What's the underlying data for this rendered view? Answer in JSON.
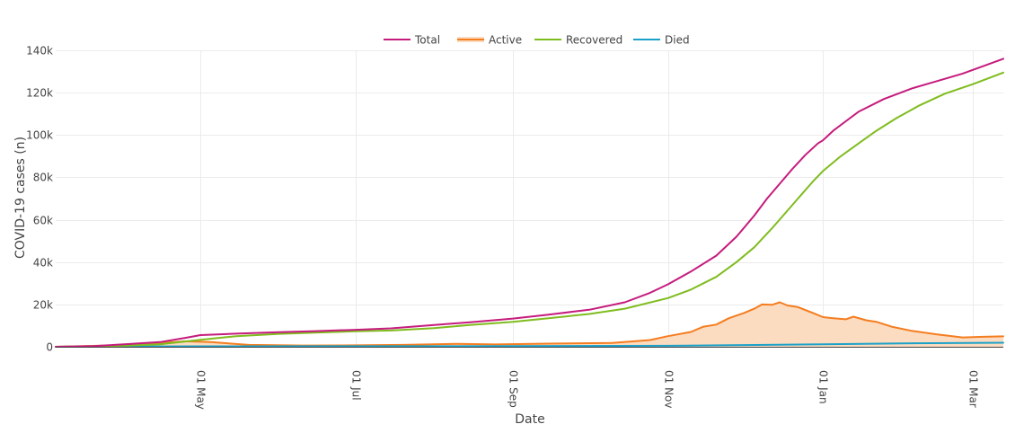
{
  "chart_data": {
    "type": "line",
    "xlabel": "Date",
    "ylabel": "COVID-19 cases (n)",
    "x_range": [
      "2020-03-05",
      "2021-03-13"
    ],
    "ylim": [
      0,
      140000
    ],
    "y_ticks": [
      0,
      20000,
      40000,
      60000,
      80000,
      100000,
      120000,
      140000
    ],
    "y_tick_labels": [
      "0",
      "20k",
      "40k",
      "60k",
      "80k",
      "100k",
      "120k",
      "140k"
    ],
    "x_ticks": [
      "2020-05-01",
      "2020-07-01",
      "2020-09-01",
      "2020-11-01",
      "2021-01-01",
      "2021-03-01"
    ],
    "x_tick_labels": [
      "01 May",
      "01 Jul",
      "01 Sep",
      "01 Nov",
      "01 Jan",
      "01 Mar"
    ],
    "grid": true,
    "legend_position": "top",
    "series": [
      {
        "name": "Total",
        "color": "#c51b7d",
        "fill": false,
        "points": [
          [
            "2020-03-05",
            0
          ],
          [
            "2020-03-20",
            300
          ],
          [
            "2020-04-01",
            1200
          ],
          [
            "2020-04-15",
            2200
          ],
          [
            "2020-04-25",
            4200
          ],
          [
            "2020-05-01",
            5500
          ],
          [
            "2020-05-15",
            6200
          ],
          [
            "2020-06-01",
            6900
          ],
          [
            "2020-06-15",
            7400
          ],
          [
            "2020-07-01",
            8000
          ],
          [
            "2020-07-15",
            8700
          ],
          [
            "2020-08-01",
            10300
          ],
          [
            "2020-08-15",
            11600
          ],
          [
            "2020-09-01",
            13300
          ],
          [
            "2020-09-15",
            15200
          ],
          [
            "2020-10-01",
            17500
          ],
          [
            "2020-10-15",
            21000
          ],
          [
            "2020-10-25",
            25500
          ],
          [
            "2020-11-01",
            29500
          ],
          [
            "2020-11-10",
            35500
          ],
          [
            "2020-11-20",
            43000
          ],
          [
            "2020-11-28",
            52000
          ],
          [
            "2020-12-05",
            62000
          ],
          [
            "2020-12-10",
            70000
          ],
          [
            "2020-12-15",
            77000
          ],
          [
            "2020-12-20",
            84000
          ],
          [
            "2020-12-25",
            90500
          ],
          [
            "2020-12-30",
            96000
          ],
          [
            "2021-01-01",
            97500
          ],
          [
            "2021-01-05",
            102000
          ],
          [
            "2021-01-10",
            106500
          ],
          [
            "2021-01-15",
            111000
          ],
          [
            "2021-01-25",
            117000
          ],
          [
            "2021-02-05",
            122000
          ],
          [
            "2021-02-15",
            125500
          ],
          [
            "2021-02-25",
            129000
          ],
          [
            "2021-03-05",
            132500
          ],
          [
            "2021-03-13",
            136000
          ]
        ]
      },
      {
        "name": "Active",
        "color": "#f47d20",
        "fill": true,
        "fill_color": "#fcdcc0",
        "points": [
          [
            "2020-03-05",
            0
          ],
          [
            "2020-04-01",
            800
          ],
          [
            "2020-04-15",
            1800
          ],
          [
            "2020-04-25",
            2600
          ],
          [
            "2020-05-05",
            2200
          ],
          [
            "2020-05-20",
            900
          ],
          [
            "2020-06-10",
            600
          ],
          [
            "2020-07-01",
            700
          ],
          [
            "2020-07-20",
            900
          ],
          [
            "2020-08-10",
            1400
          ],
          [
            "2020-08-25",
            1100
          ],
          [
            "2020-09-15",
            1500
          ],
          [
            "2020-10-10",
            1800
          ],
          [
            "2020-10-25",
            3200
          ],
          [
            "2020-11-01",
            5000
          ],
          [
            "2020-11-10",
            7000
          ],
          [
            "2020-11-15",
            9500
          ],
          [
            "2020-11-20",
            10500
          ],
          [
            "2020-11-25",
            13500
          ],
          [
            "2020-12-01",
            16000
          ],
          [
            "2020-12-05",
            18000
          ],
          [
            "2020-12-08",
            20000
          ],
          [
            "2020-12-12",
            19800
          ],
          [
            "2020-12-15",
            21000
          ],
          [
            "2020-12-18",
            19500
          ],
          [
            "2020-12-22",
            18800
          ],
          [
            "2020-12-28",
            16000
          ],
          [
            "2021-01-01",
            14000
          ],
          [
            "2021-01-05",
            13500
          ],
          [
            "2021-01-10",
            13000
          ],
          [
            "2021-01-13",
            14200
          ],
          [
            "2021-01-18",
            12500
          ],
          [
            "2021-01-22",
            11800
          ],
          [
            "2021-01-28",
            9500
          ],
          [
            "2021-02-05",
            7500
          ],
          [
            "2021-02-15",
            5800
          ],
          [
            "2021-02-25",
            4400
          ],
          [
            "2021-03-05",
            4700
          ],
          [
            "2021-03-13",
            4900
          ]
        ]
      },
      {
        "name": "Recovered",
        "color": "#7fbc1e",
        "fill": false,
        "points": [
          [
            "2020-03-05",
            0
          ],
          [
            "2020-04-01",
            500
          ],
          [
            "2020-04-15",
            1200
          ],
          [
            "2020-05-01",
            3300
          ],
          [
            "2020-05-15",
            5000
          ],
          [
            "2020-06-01",
            6100
          ],
          [
            "2020-06-15",
            6700
          ],
          [
            "2020-07-01",
            7300
          ],
          [
            "2020-07-15",
            7700
          ],
          [
            "2020-08-01",
            8800
          ],
          [
            "2020-08-15",
            10300
          ],
          [
            "2020-09-01",
            11800
          ],
          [
            "2020-09-15",
            13500
          ],
          [
            "2020-10-01",
            15500
          ],
          [
            "2020-10-15",
            18000
          ],
          [
            "2020-11-01",
            23000
          ],
          [
            "2020-11-10",
            27000
          ],
          [
            "2020-11-20",
            33000
          ],
          [
            "2020-11-28",
            40000
          ],
          [
            "2020-12-05",
            47000
          ],
          [
            "2020-12-12",
            56000
          ],
          [
            "2020-12-20",
            67000
          ],
          [
            "2020-12-28",
            78000
          ],
          [
            "2021-01-01",
            83000
          ],
          [
            "2021-01-08",
            90000
          ],
          [
            "2021-01-15",
            96000
          ],
          [
            "2021-01-22",
            102000
          ],
          [
            "2021-01-30",
            108000
          ],
          [
            "2021-02-08",
            114000
          ],
          [
            "2021-02-18",
            119500
          ],
          [
            "2021-03-01",
            124000
          ],
          [
            "2021-03-13",
            129500
          ]
        ]
      },
      {
        "name": "Died",
        "color": "#1ba1c9",
        "fill": false,
        "points": [
          [
            "2020-03-05",
            0
          ],
          [
            "2020-05-01",
            200
          ],
          [
            "2020-07-01",
            250
          ],
          [
            "2020-09-01",
            300
          ],
          [
            "2020-11-01",
            450
          ],
          [
            "2020-12-01",
            800
          ],
          [
            "2021-01-01",
            1200
          ],
          [
            "2021-02-01",
            1600
          ],
          [
            "2021-03-13",
            1900
          ]
        ]
      }
    ]
  }
}
